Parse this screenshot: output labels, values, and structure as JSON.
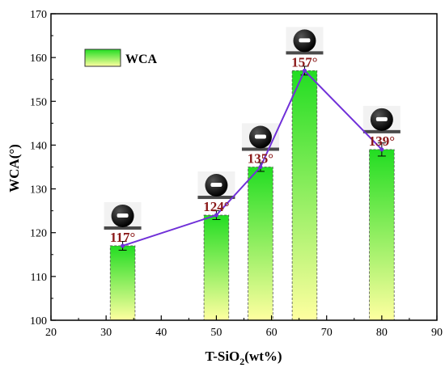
{
  "chart_data": {
    "type": "bar",
    "xlabel_main": "T-SiO",
    "xlabel_sub": "2",
    "xlabel_tail": "(wt%)",
    "ylabel": "WCA(°)",
    "xlim": [
      20,
      90
    ],
    "ylim": [
      100,
      170
    ],
    "x_ticks": [
      "20",
      "30",
      "40",
      "50",
      "60",
      "70",
      "80",
      "90"
    ],
    "y_ticks": [
      "100",
      "110",
      "120",
      "130",
      "140",
      "150",
      "160",
      "170"
    ],
    "legend": {
      "label": "WCA",
      "position": "top-left"
    },
    "bar_width": 4.5,
    "series": [
      {
        "name": "WCA",
        "x": [
          33,
          50,
          58,
          66,
          80
        ],
        "values": [
          117,
          124,
          135,
          157,
          139
        ],
        "errors": [
          1,
          1,
          1,
          1,
          1.5
        ],
        "labels": [
          "117°",
          "124°",
          "135°",
          "157°",
          "139°"
        ]
      }
    ],
    "line_connects_bars": true,
    "colors": {
      "bar_top": "#22dd22",
      "bar_bottom": "#ffffa0",
      "line": "#7030d8",
      "label": "#8b1a1a"
    },
    "droplet_images": [
      "droplet-117",
      "droplet-124",
      "droplet-135",
      "droplet-157",
      "droplet-139"
    ]
  }
}
